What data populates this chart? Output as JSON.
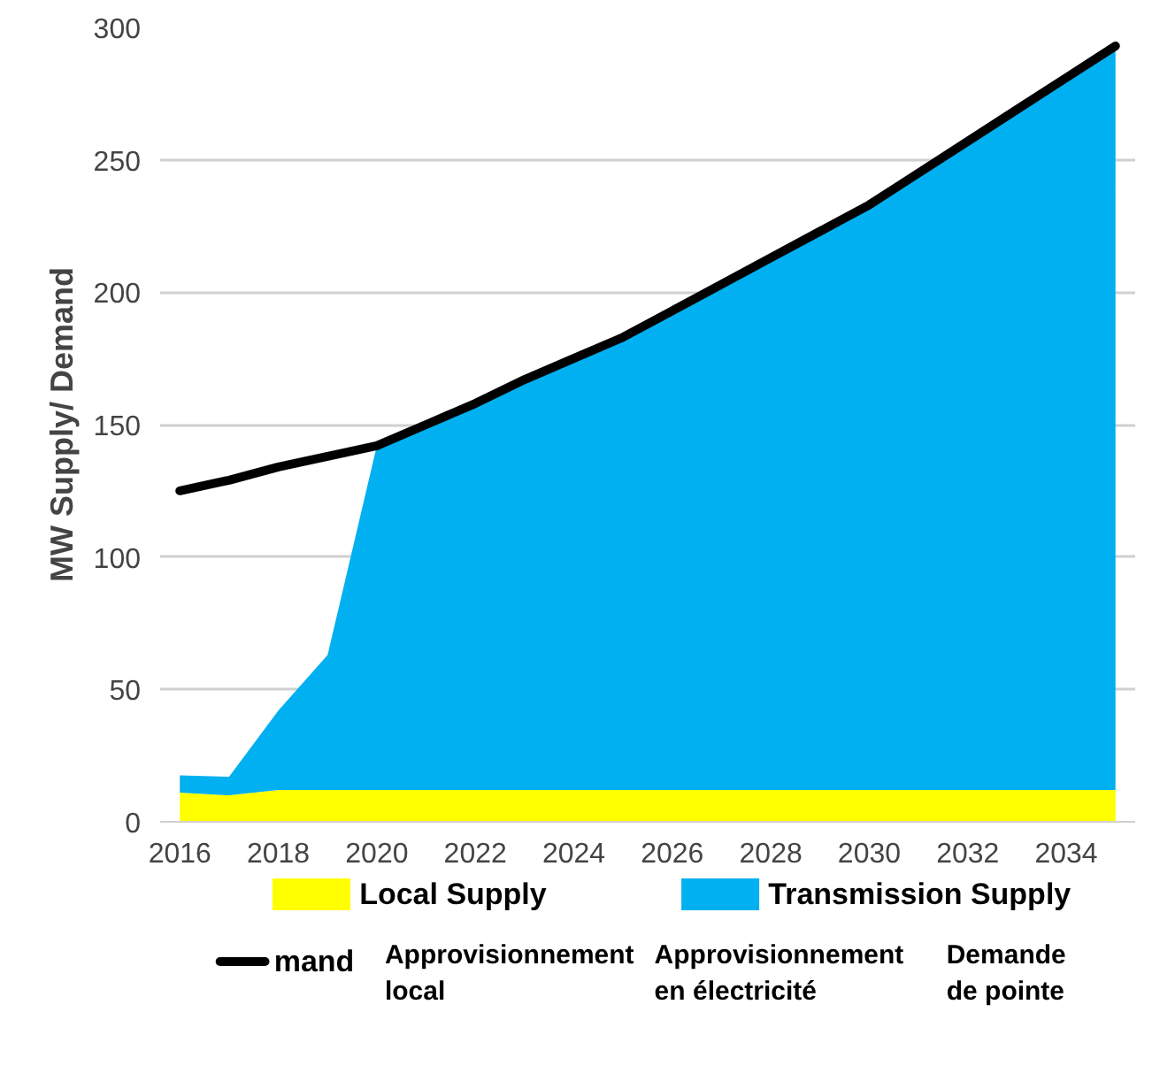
{
  "chart_data": {
    "type": "area",
    "stacked": true,
    "ylabel": "MW Supply/ Demand",
    "categories": [
      "2016",
      null,
      "2018",
      null,
      "2020",
      null,
      "2022",
      null,
      "2024",
      null,
      "2026",
      null,
      "2028",
      null,
      "2030",
      null,
      "2032",
      null,
      "2034",
      null
    ],
    "series": [
      {
        "name": "Local Supply",
        "color": "#ffff00",
        "values": [
          11,
          10,
          12,
          12,
          12,
          12,
          12,
          12,
          12,
          12,
          12,
          12,
          12,
          12,
          12,
          12,
          12,
          12,
          12,
          12
        ]
      },
      {
        "name": "Transmission Supply",
        "color": "#00b0f0",
        "values": [
          6.5,
          7,
          30,
          51,
          130,
          138,
          146,
          155,
          163,
          171,
          181,
          191,
          201,
          211,
          221,
          233,
          245,
          257,
          269,
          281
        ]
      },
      {
        "name": "mand",
        "type": "line",
        "color": "#000000",
        "values": [
          125,
          129,
          134,
          138,
          142,
          150,
          158,
          167,
          175,
          183,
          193,
          203,
          213,
          223,
          233,
          245,
          257,
          269,
          281,
          293
        ]
      }
    ],
    "ylim": [
      0,
      300
    ],
    "yticks": [
      0,
      50,
      100,
      150,
      200,
      250,
      300
    ],
    "grid": "y",
    "legend": "bottom",
    "line_style": "solid",
    "marker": "none",
    "annotations": [
      "Approvisionnement local",
      "Approvisionnement en électricité",
      "Demande de pointe"
    ]
  }
}
